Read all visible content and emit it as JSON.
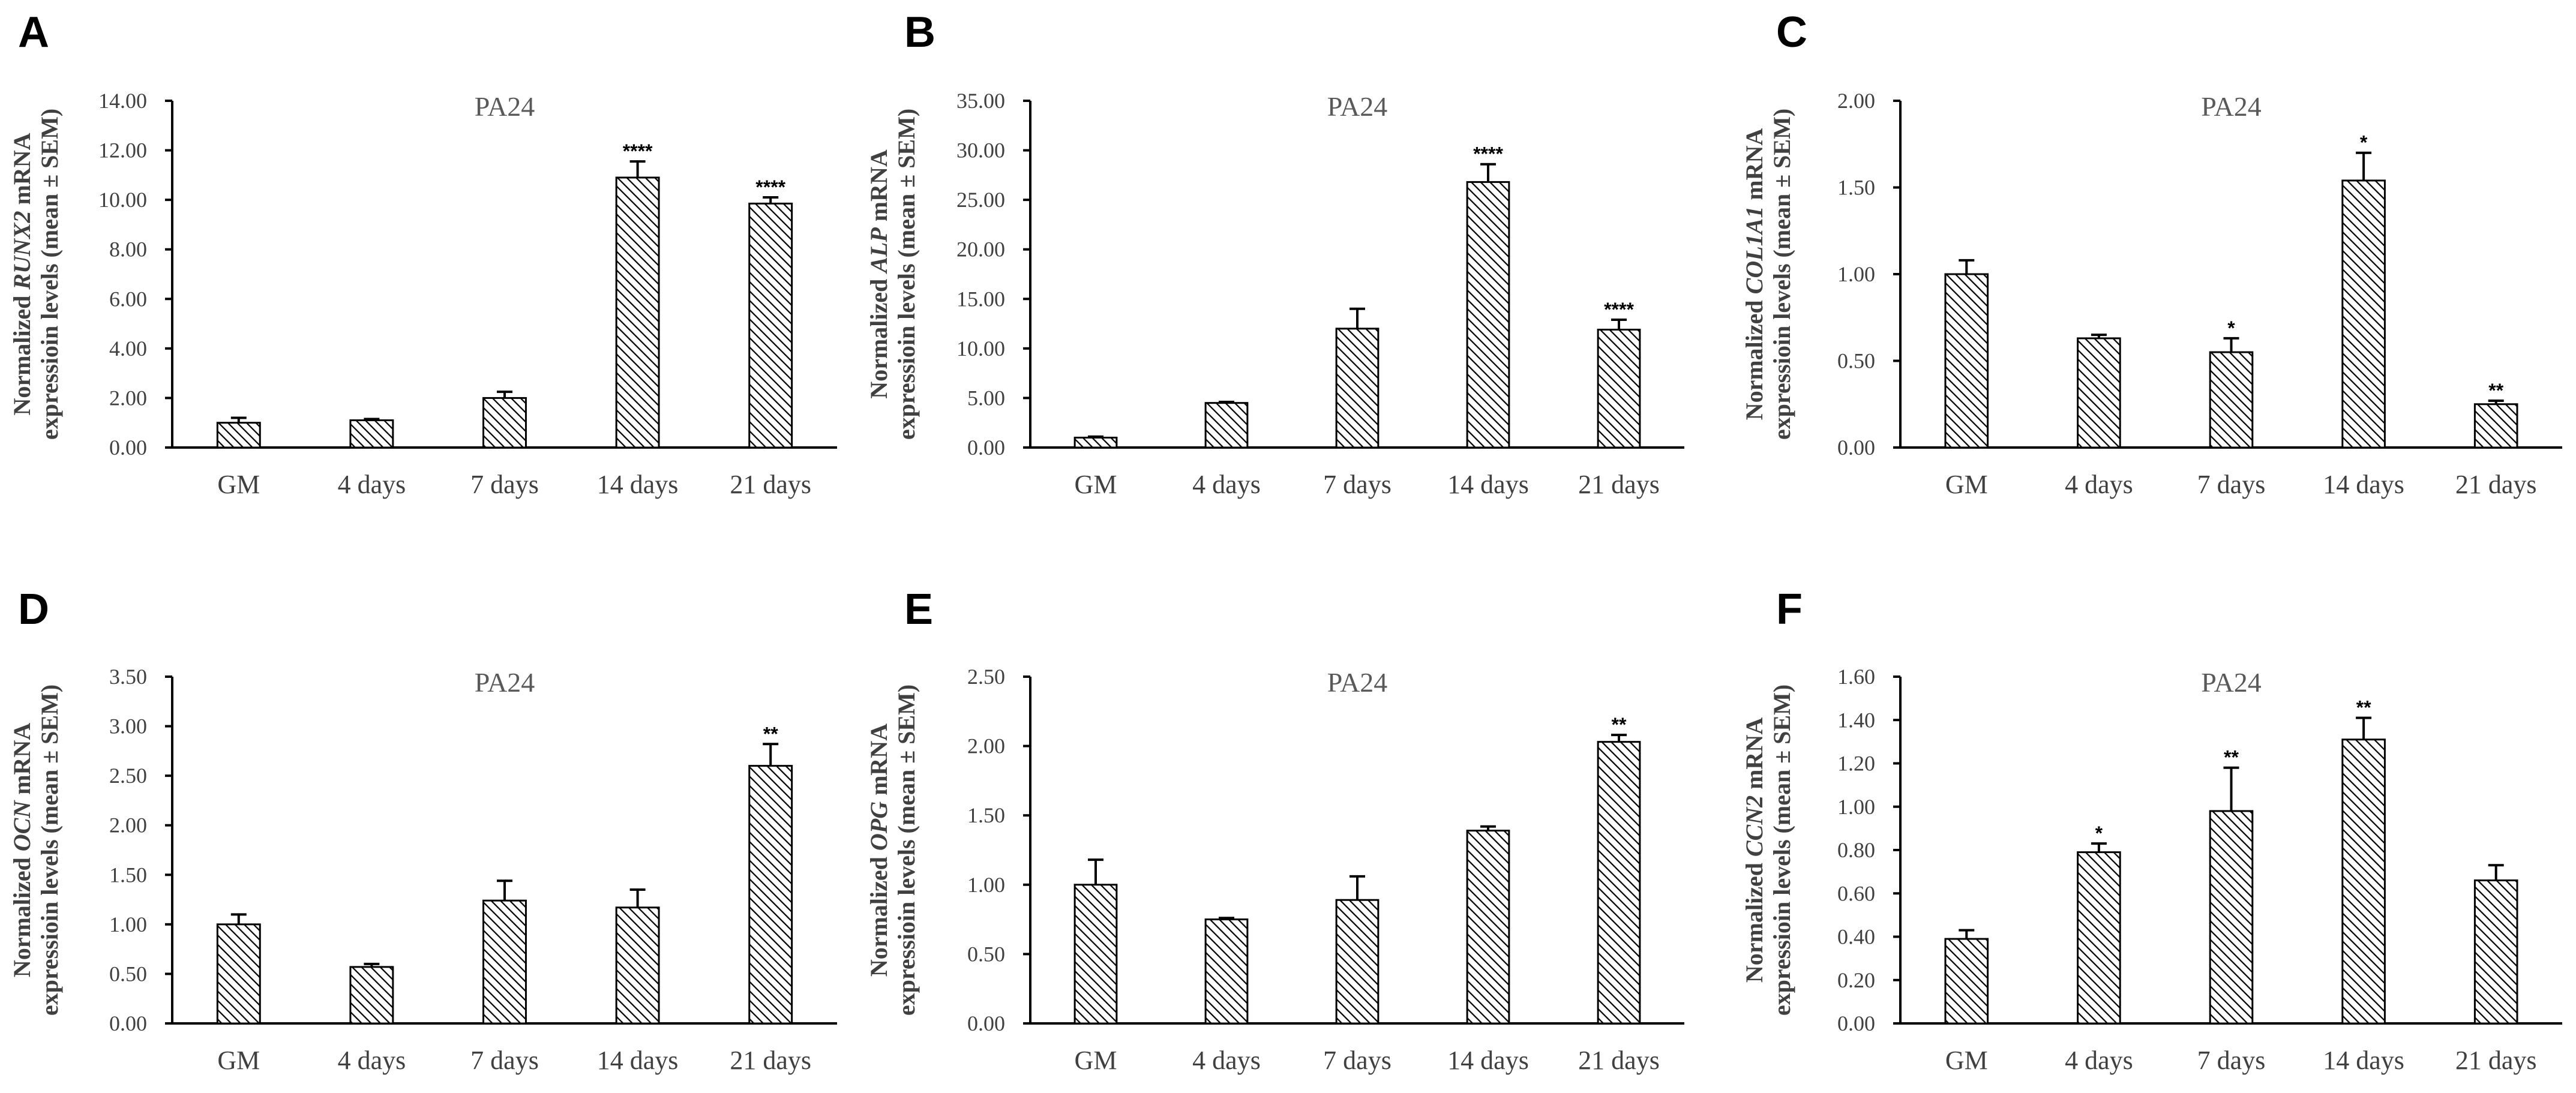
{
  "chart_data": [
    {
      "type": "bar",
      "panel": "A",
      "title": "PA24",
      "ylabel_prefix": "Normalized ",
      "gene": "RUNX2",
      "ylabel_suffix": " mRNA",
      "ylabel_line2": "expressioin levels (mean ± SEM)",
      "ylim": [
        0,
        14
      ],
      "yticks": [
        0,
        2,
        4,
        6,
        8,
        10,
        12,
        14
      ],
      "ytick_labels": [
        "0.00",
        "2.00",
        "4.00",
        "6.00",
        "8.00",
        "10.00",
        "12.00",
        "14.00"
      ],
      "categories": [
        "GM",
        "4 days",
        "7 days",
        "14 days",
        "21 days"
      ],
      "values": [
        1.0,
        1.1,
        2.0,
        10.9,
        9.85
      ],
      "errors": [
        0.2,
        0.05,
        0.25,
        0.65,
        0.25
      ],
      "significance": [
        "",
        "",
        "",
        "****",
        "****"
      ]
    },
    {
      "type": "bar",
      "panel": "B",
      "title": "PA24",
      "ylabel_prefix": "Normalized ",
      "gene": "ALP",
      "ylabel_suffix": " mRNA",
      "ylabel_line2": "expressioin levels (mean ± SEM)",
      "ylim": [
        0,
        35
      ],
      "yticks": [
        0,
        5,
        10,
        15,
        20,
        25,
        30,
        35
      ],
      "ytick_labels": [
        "0.00",
        "5.00",
        "10.00",
        "15.00",
        "20.00",
        "25.00",
        "30.00",
        "35.00"
      ],
      "categories": [
        "GM",
        "4 days",
        "7 days",
        "14 days",
        "21 days"
      ],
      "values": [
        1.0,
        4.5,
        12.0,
        26.8,
        11.9
      ],
      "errors": [
        0.1,
        0.1,
        2.0,
        1.8,
        1.0
      ],
      "significance": [
        "",
        "",
        "",
        "****",
        "****"
      ]
    },
    {
      "type": "bar",
      "panel": "C",
      "title": "PA24",
      "ylabel_prefix": "Normalized ",
      "gene": "COL1A1",
      "ylabel_suffix": " mRNA",
      "ylabel_line2": "expressioin levels (mean ± SEM)",
      "ylim": [
        0,
        2
      ],
      "yticks": [
        0,
        0.5,
        1,
        1.5,
        2
      ],
      "ytick_labels": [
        "0.00",
        "0.50",
        "1.00",
        "1.50",
        "2.00"
      ],
      "categories": [
        "GM",
        "4 days",
        "7 days",
        "14 days",
        "21 days"
      ],
      "values": [
        1.0,
        0.63,
        0.55,
        1.54,
        0.25
      ],
      "errors": [
        0.08,
        0.02,
        0.08,
        0.16,
        0.02
      ],
      "significance": [
        "",
        "",
        "*",
        "*",
        "**"
      ]
    },
    {
      "type": "bar",
      "panel": "D",
      "title": "PA24",
      "ylabel_prefix": "Normalized ",
      "gene": "OCN",
      "ylabel_suffix": " mRNA",
      "ylabel_line2": "expressioin levels (mean ± SEM)",
      "ylim": [
        0,
        3.5
      ],
      "yticks": [
        0,
        0.5,
        1,
        1.5,
        2,
        2.5,
        3,
        3.5
      ],
      "ytick_labels": [
        "0.00",
        "0.50",
        "1.00",
        "1.50",
        "2.00",
        "2.50",
        "3.00",
        "3.50"
      ],
      "categories": [
        "GM",
        "4 days",
        "7 days",
        "14 days",
        "21 days"
      ],
      "values": [
        1.0,
        0.57,
        1.24,
        1.17,
        2.6
      ],
      "errors": [
        0.1,
        0.03,
        0.2,
        0.18,
        0.22
      ],
      "significance": [
        "",
        "",
        "",
        "",
        "**"
      ]
    },
    {
      "type": "bar",
      "panel": "E",
      "title": "PA24",
      "ylabel_prefix": "Normalized ",
      "gene": "OPG",
      "ylabel_suffix": " mRNA",
      "ylabel_line2": "expressioin levels (mean ± SEM)",
      "ylim": [
        0,
        2.5
      ],
      "yticks": [
        0,
        0.5,
        1,
        1.5,
        2,
        2.5
      ],
      "ytick_labels": [
        "0.00",
        "0.50",
        "1.00",
        "1.50",
        "2.00",
        "2.50"
      ],
      "categories": [
        "GM",
        "4 days",
        "7 days",
        "14 days",
        "21 days"
      ],
      "values": [
        1.0,
        0.75,
        0.89,
        1.39,
        2.03
      ],
      "errors": [
        0.18,
        0.01,
        0.17,
        0.03,
        0.05
      ],
      "significance": [
        "",
        "",
        "",
        "",
        "**"
      ]
    },
    {
      "type": "bar",
      "panel": "F",
      "title": "PA24",
      "ylabel_prefix": "Normalized ",
      "gene": "CCN2",
      "ylabel_suffix": " mRNA",
      "ylabel_line2": "expressioin levels (mean ± SEM)",
      "ylim": [
        0,
        1.6
      ],
      "yticks": [
        0,
        0.2,
        0.4,
        0.6,
        0.8,
        1.0,
        1.2,
        1.4,
        1.6
      ],
      "ytick_labels": [
        "0.00",
        "0.20",
        "0.40",
        "0.60",
        "0.80",
        "1.00",
        "1.20",
        "1.40",
        "1.60"
      ],
      "categories": [
        "GM",
        "4 days",
        "7 days",
        "14 days",
        "21 days"
      ],
      "values": [
        0.39,
        0.79,
        0.98,
        1.31,
        0.66
      ],
      "errors": [
        0.04,
        0.04,
        0.2,
        0.1,
        0.07
      ],
      "significance": [
        "",
        "*",
        "**",
        "**",
        ""
      ]
    }
  ]
}
